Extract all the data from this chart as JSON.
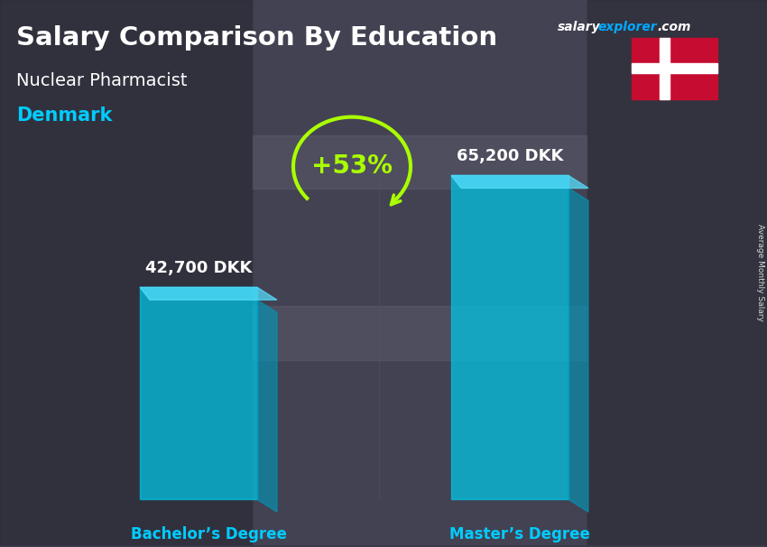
{
  "title": "Salary Comparison By Education",
  "subtitle1": "Nuclear Pharmacist",
  "subtitle2": "Denmark",
  "categories": [
    "Bachelor’s Degree",
    "Master’s Degree"
  ],
  "values": [
    42700,
    65200
  ],
  "labels": [
    "42,700 DKK",
    "65,200 DKK"
  ],
  "bar_color": "#00c8e8",
  "bar_alpha": 0.72,
  "bar_side_color": "#0099bb",
  "bar_top_color": "#55e0ff",
  "pct_change": "+53%",
  "site_salary": "salary",
  "site_explorer": "explorer",
  "site_dot_com": ".com",
  "ylabel_rotated": "Average Monthly Salary",
  "bg_color": "#3a3a4a",
  "title_color": "#ffffff",
  "subtitle1_color": "#ffffff",
  "subtitle2_color": "#00ccff",
  "label_color": "#ffffff",
  "cat_color": "#00ccff",
  "arrow_color": "#aaff00",
  "pct_color": "#aaff00",
  "flag_red": "#C60C30",
  "flag_white": "#ffffff",
  "site_color_salary": "#ffffff",
  "site_color_explorer": "#00aaff",
  "site_color_com": "#ffffff"
}
